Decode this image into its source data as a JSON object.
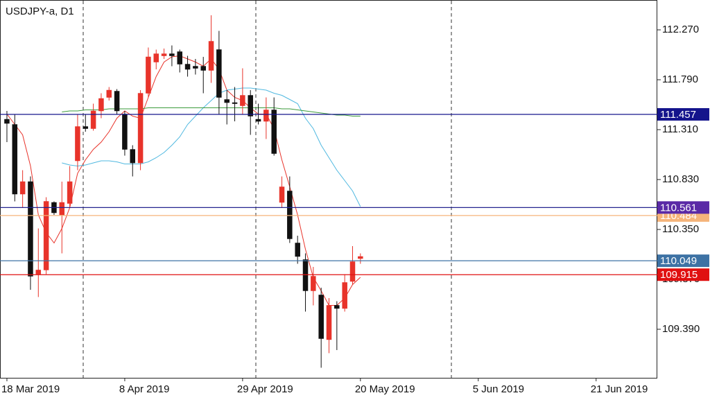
{
  "chart_data": {
    "type": "candlestick",
    "title": "USDJPY-a, D1",
    "up_color": "#e8332a",
    "down_color": "#111111",
    "open": [
      111.41,
      111.36,
      110.69,
      110.81,
      109.92,
      109.96,
      110.61,
      110.49,
      110.6,
      111.01,
      111.34,
      111.32,
      111.49,
      111.62,
      111.68,
      111.46,
      111.12,
      110.99,
      111.66,
      111.96,
      112.02,
      112.04,
      112.06,
      111.94,
      111.92,
      111.92,
      111.88,
      112.08,
      111.6,
      111.57,
      111.54,
      111.64,
      111.41,
      111.39,
      111.5,
      110.61,
      110.72,
      110.22,
      110.06,
      109.76,
      109.72,
      109.29,
      109.62,
      109.59,
      109.85,
      110.07
    ],
    "high": [
      111.49,
      111.46,
      110.92,
      110.86,
      110.36,
      110.66,
      110.62,
      110.81,
      110.96,
      111.46,
      111.46,
      111.56,
      111.66,
      111.72,
      111.7,
      111.49,
      111.16,
      111.69,
      112.1,
      112.08,
      112.09,
      112.12,
      112.08,
      112.02,
      111.99,
      112.01,
      112.41,
      112.26,
      111.69,
      111.72,
      111.9,
      111.69,
      111.56,
      111.62,
      111.62,
      110.86,
      110.86,
      110.29,
      110.12,
      109.99,
      109.79,
      109.69,
      109.66,
      109.92,
      110.19,
      110.12
    ],
    "low": [
      111.19,
      110.62,
      110.56,
      109.77,
      109.7,
      109.92,
      110.49,
      110.12,
      110.56,
      110.92,
      111.29,
      111.3,
      111.42,
      111.59,
      111.46,
      111.06,
      110.86,
      110.92,
      111.62,
      111.89,
      111.99,
      111.92,
      111.86,
      111.82,
      111.84,
      111.66,
      111.76,
      111.46,
      111.36,
      111.39,
      111.46,
      111.26,
      111.36,
      111.22,
      111.06,
      110.56,
      110.22,
      110.02,
      109.56,
      109.62,
      109.02,
      109.16,
      109.19,
      109.56,
      109.82,
      110.02
    ],
    "close": [
      111.37,
      110.69,
      110.81,
      109.9,
      109.96,
      110.62,
      110.51,
      110.61,
      110.81,
      111.34,
      111.32,
      111.49,
      111.61,
      111.69,
      111.49,
      111.12,
      110.99,
      111.66,
      112.01,
      112.04,
      112.04,
      112.02,
      111.94,
      111.89,
      111.9,
      111.88,
      112.16,
      111.62,
      111.57,
      111.56,
      111.64,
      111.44,
      111.39,
      111.5,
      111.08,
      110.76,
      110.26,
      110.09,
      109.76,
      109.9,
      109.3,
      109.62,
      109.59,
      109.84,
      110.04,
      110.09
    ],
    "series": [
      {
        "color": "#e8332a",
        "values": [
          111.46,
          111.36,
          111.26,
          110.96,
          110.49,
          110.32,
          110.22,
          110.36,
          110.56,
          110.89,
          111.02,
          111.12,
          111.19,
          111.29,
          111.42,
          111.49,
          111.44,
          111.42,
          111.62,
          111.82,
          111.96,
          112.01,
          112.02,
          111.99,
          111.96,
          111.92,
          111.99,
          111.89,
          111.69,
          111.62,
          111.59,
          111.52,
          111.46,
          111.46,
          111.32,
          111.02,
          110.76,
          110.49,
          110.16,
          109.89,
          109.76,
          109.62,
          109.62,
          109.69,
          109.82,
          109.89
        ]
      },
      {
        "color": "#4fb8e0",
        "values": [
          null,
          null,
          null,
          null,
          null,
          null,
          null,
          110.99,
          110.97,
          110.96,
          110.97,
          110.99,
          111.01,
          111.01,
          111.0,
          110.98,
          110.98,
          110.98,
          111.0,
          111.04,
          111.09,
          111.16,
          111.24,
          111.36,
          111.44,
          111.52,
          111.59,
          111.66,
          111.69,
          111.7,
          111.71,
          111.71,
          111.7,
          111.69,
          111.66,
          111.64,
          111.6,
          111.56,
          111.42,
          111.32,
          111.16,
          111.04,
          110.92,
          110.82,
          110.72,
          110.57
        ]
      },
      {
        "color": "#3a9a3a",
        "values": [
          null,
          null,
          null,
          null,
          null,
          null,
          null,
          111.48,
          111.49,
          111.49,
          111.5,
          111.5,
          111.5,
          111.51,
          111.51,
          111.51,
          111.51,
          111.51,
          111.52,
          111.52,
          111.52,
          111.52,
          111.52,
          111.52,
          111.52,
          111.52,
          111.52,
          111.52,
          111.52,
          111.52,
          111.52,
          111.52,
          111.52,
          111.52,
          111.52,
          111.51,
          111.51,
          111.5,
          111.49,
          111.48,
          111.47,
          111.46,
          111.45,
          111.45,
          111.44,
          111.44
        ]
      }
    ],
    "levels": [
      {
        "value": 110.484,
        "color": "#f5b47a"
      },
      {
        "value": 109.915,
        "color": "#e01010"
      },
      {
        "value": 110.049,
        "color": "#3d72a4"
      },
      {
        "value": 110.561,
        "color": "#23238f",
        "label_color": "#5a2aa6"
      },
      {
        "value": 111.457,
        "color": "#14148c"
      }
    ],
    "xlim": [
      -0.88,
      82.79
    ],
    "xticks": [
      {
        "value": 0,
        "label": "18 Mar 2019"
      },
      {
        "value": 15,
        "label": "8 Apr 2019"
      },
      {
        "value": 30,
        "label": "29 Apr 2019"
      },
      {
        "value": 45,
        "label": "20 May 2019"
      },
      {
        "value": 60,
        "label": "5 Jun 2019"
      },
      {
        "value": 75,
        "label": "21 Jun 2019"
      }
    ],
    "ylim": [
      108.923,
      112.557
    ],
    "yticks": [
      {
        "value": 112.27,
        "label": "112.270"
      },
      {
        "value": 111.79,
        "label": "111.790"
      },
      {
        "value": 111.31,
        "label": "111.310"
      },
      {
        "value": 110.83,
        "label": "110.830"
      },
      {
        "value": 110.35,
        "label": "110.350"
      },
      {
        "value": 109.87,
        "label": "109.870"
      },
      {
        "value": 109.39,
        "label": "109.390"
      }
    ]
  }
}
